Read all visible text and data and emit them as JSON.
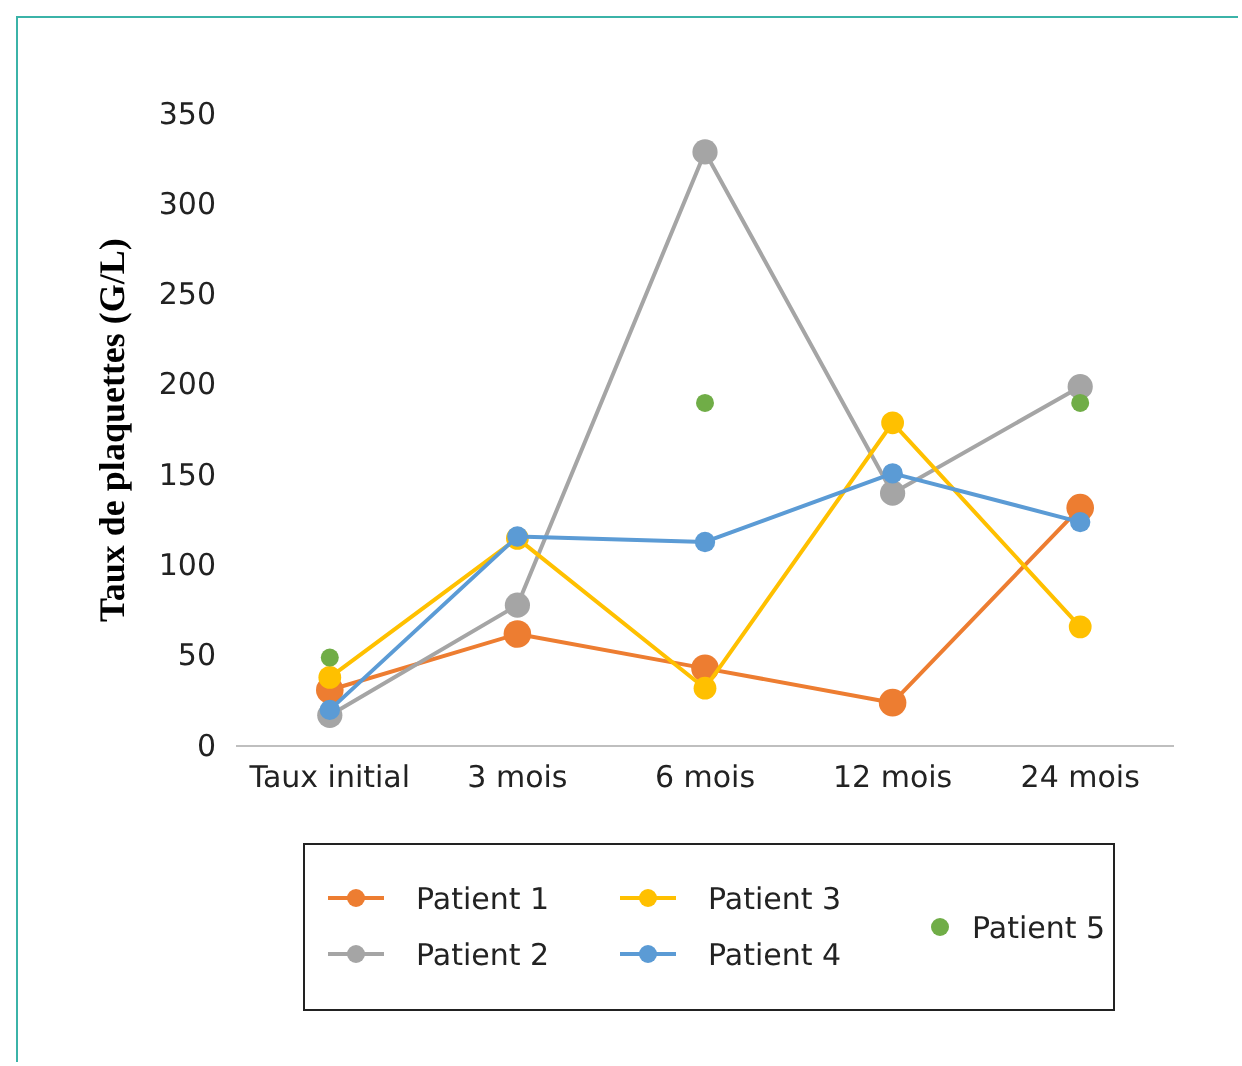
{
  "chart_data": {
    "type": "line",
    "ylabel": "Taux de plaquettes (G/L)",
    "categories": [
      "Taux initial",
      "3 mois",
      "6 mois",
      "12 mois",
      "24 mois"
    ],
    "ylim": [
      0,
      350
    ],
    "yticks": [
      0,
      50,
      100,
      150,
      200,
      250,
      300,
      350
    ],
    "grid": false,
    "legend": "bottom",
    "marker": "circle",
    "line_style": "solid",
    "series": [
      {
        "name": "Patient 1",
        "color": "#ed7d31",
        "values": [
          31,
          62,
          43,
          24,
          132
        ]
      },
      {
        "name": "Patient 2",
        "color": "#a5a5a5",
        "values": [
          17,
          78,
          329,
          140,
          199
        ]
      },
      {
        "name": "Patient 3",
        "color": "#ffc000",
        "values": [
          38,
          115,
          32,
          179,
          66
        ]
      },
      {
        "name": "Patient 4",
        "color": "#5b9bd5",
        "values": [
          20,
          116,
          113,
          151,
          124
        ]
      },
      {
        "name": "Patient 5",
        "color": "#70ad47",
        "type": "scatter",
        "values": [
          49,
          null,
          190,
          null,
          190
        ]
      }
    ]
  }
}
